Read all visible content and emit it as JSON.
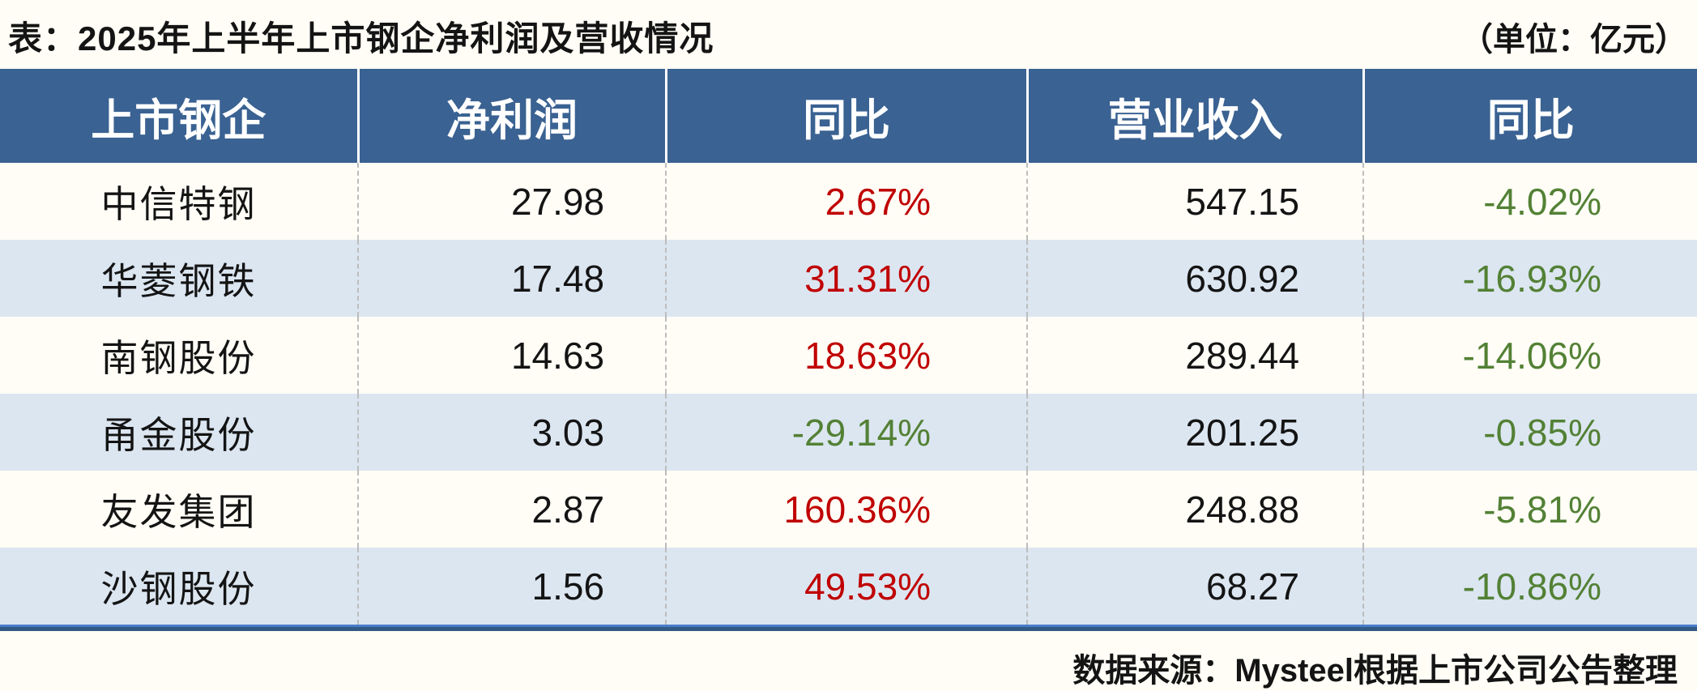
{
  "header": {
    "title": "表：2025年上半年上市钢企净利润及营收情况",
    "unit_note": "（单位：亿元）"
  },
  "footer": {
    "source": "数据来源：Mysteel根据上市公司公告整理"
  },
  "colors": {
    "header_bg": "#3A6292",
    "header_text": "#FFFFFF",
    "row_alt_bg": "#DCE6F1",
    "page_bg": "#FFFDF6",
    "yoy_positive": "#C00000",
    "yoy_negative": "#538135",
    "dashed_divider": "#BDBDBD",
    "bottom_rule_top": "#4A7BC8",
    "bottom_rule_bottom": "#325A85"
  },
  "chart_data": {
    "type": "table",
    "title": "表：2025年上半年上市钢企净利润及营收情况",
    "unit": "亿元",
    "columns": [
      "上市钢企",
      "净利润",
      "同比",
      "营业收入",
      "同比"
    ],
    "rows": [
      [
        "中信特钢",
        "27.98",
        "2.67%",
        "547.15",
        "-4.02%"
      ],
      [
        "华菱钢铁",
        "17.48",
        "31.31%",
        "630.92",
        "-16.93%"
      ],
      [
        "南钢股份",
        "14.63",
        "18.63%",
        "289.44",
        "-14.06%"
      ],
      [
        "甬金股份",
        "3.03",
        "-29.14%",
        "201.25",
        "-0.85%"
      ],
      [
        "友发集团",
        "2.87",
        "160.36%",
        "248.88",
        "-5.81%"
      ],
      [
        "沙钢股份",
        "1.56",
        "49.53%",
        "68.27",
        "-10.86%"
      ]
    ],
    "source": "数据来源：Mysteel根据上市公司公告整理",
    "layout_hints": {
      "row_striping": "white / light-blue alternating",
      "yoy_color_rule": "positive values red, negative values green",
      "numeric_columns_alignment": "right"
    }
  }
}
